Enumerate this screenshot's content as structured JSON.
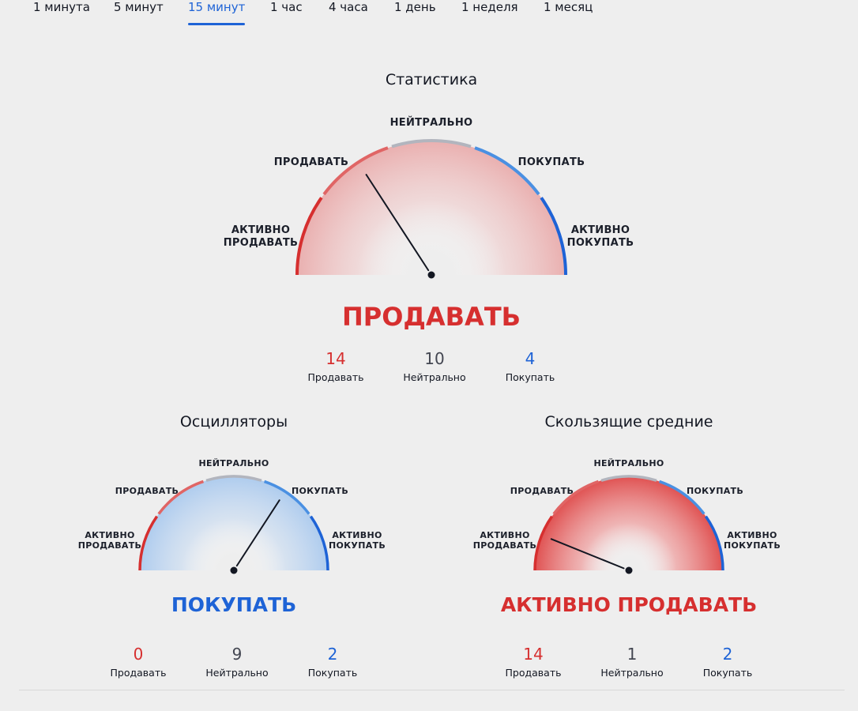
{
  "tabs": [
    {
      "label": "1 минута",
      "active": false
    },
    {
      "label": "5 минут",
      "active": false
    },
    {
      "label": "15 минут",
      "active": true
    },
    {
      "label": "1 час",
      "active": false
    },
    {
      "label": "4 часа",
      "active": false
    },
    {
      "label": "1 день",
      "active": false
    },
    {
      "label": "1 неделя",
      "active": false
    },
    {
      "label": "1 месяц",
      "active": false
    }
  ],
  "gauge_zones": {
    "strong_sell": "АКТИВНО ПРОДАВАТЬ",
    "sell": "ПРОДАВАТЬ",
    "neutral": "НЕЙТРАЛЬНО",
    "buy": "ПОКУПАТЬ",
    "strong_buy": "АКТИВНО ПОКУПАТЬ",
    "strong_sell_line1": "АКТИВНО",
    "strong_sell_line2": "ПРОДАВАТЬ",
    "strong_buy_line1": "АКТИВНО",
    "strong_buy_line2": "ПОКУПАТЬ"
  },
  "colors": {
    "sell": "#d62f2f",
    "buy": "#1e63d6",
    "neutral_arc": "#b2b5be",
    "sell_arc_light": "#e06565",
    "buy_arc_light": "#4a90e2"
  },
  "summary": {
    "title": "Статистика",
    "verdict": "ПРОДАВАТЬ",
    "verdict_tone": "sell",
    "needle_angle_deg": 123,
    "sell_count": "14",
    "neutral_count": "10",
    "buy_count": "4",
    "sell_label": "Продавать",
    "neutral_label": "Нейтрально",
    "buy_label": "Покупать"
  },
  "oscillators": {
    "title": "Осцилляторы",
    "verdict": "ПОКУПАТЬ",
    "verdict_tone": "buy",
    "needle_angle_deg": 57,
    "sell_count": "0",
    "neutral_count": "9",
    "buy_count": "2",
    "sell_label": "Продавать",
    "neutral_label": "Нейтрально",
    "buy_label": "Покупать"
  },
  "moving_averages": {
    "title": "Скользящие средние",
    "verdict": "АКТИВНО ПРОДАВАТЬ",
    "verdict_tone": "sell",
    "needle_angle_deg": 158,
    "sell_count": "14",
    "neutral_count": "1",
    "buy_count": "2",
    "sell_label": "Продавать",
    "neutral_label": "Нейтрально",
    "buy_label": "Покупать"
  }
}
